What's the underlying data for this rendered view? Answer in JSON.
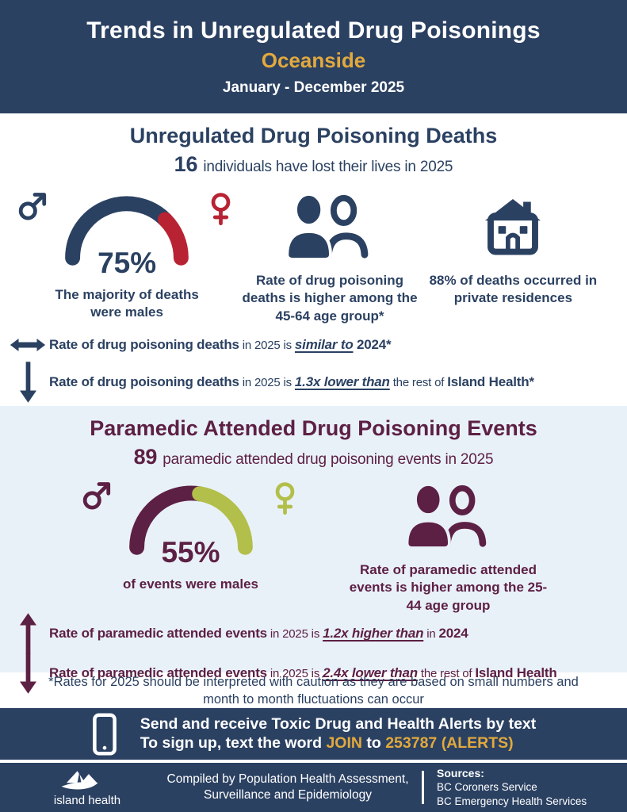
{
  "colors": {
    "navy": "#2b4162",
    "gold": "#e2a93d",
    "red": "#b82333",
    "maroon": "#5d2045",
    "olive": "#b2bf4a",
    "light_blue": "#e9f1f8"
  },
  "icons": {
    "male": "male-symbol",
    "female": "female-symbol",
    "people": "two-people",
    "house": "house",
    "left_right": "left-right-arrow",
    "down": "down-arrow",
    "up": "up-arrow",
    "phone": "mobile-phone",
    "logo": "island-health-mountain-logo"
  },
  "header": {
    "title": "Trends in Unregulated Drug Poisonings",
    "region": "Oceanside",
    "period": "January - December 2025"
  },
  "deaths": {
    "title": "Unregulated Drug Poisoning Deaths",
    "count": "16",
    "count_text": "individuals have lost their lives in 2025",
    "gauge": {
      "type": "gauge",
      "pct": 75,
      "value_label": "75%",
      "caption": "The majority of deaths were males",
      "main_color": "#2b4162",
      "rest_color": "#b82333"
    },
    "age_stat": "Rate of drug poisoning deaths is higher among the 45-64 age group*",
    "residence_stat": "88% of deaths occurred in private residences",
    "comparisons": [
      {
        "icon": "left-right-arrow",
        "segments": [
          {
            "t": "Rate of drug poisoning deaths",
            "c": "b"
          },
          {
            "t": " in 2025 is ",
            "c": "n"
          },
          {
            "t": "similar to",
            "c": "u"
          },
          {
            "t": " 2024*",
            "c": "b"
          }
        ]
      },
      {
        "icon": "down-arrow",
        "segments": [
          {
            "t": "Rate of drug poisoning deaths",
            "c": "b"
          },
          {
            "t": " in 2025 is ",
            "c": "n"
          },
          {
            "t": "1.3x lower than",
            "c": "u"
          },
          {
            "t": " the rest of ",
            "c": "n"
          },
          {
            "t": "Island Health*",
            "c": "b"
          }
        ]
      }
    ]
  },
  "events": {
    "title": "Paramedic Attended Drug Poisoning Events",
    "count": "89",
    "count_text": "paramedic attended drug poisoning events in 2025",
    "gauge": {
      "type": "gauge",
      "pct": 55,
      "value_label": "55%",
      "caption": "of events were males",
      "main_color": "#5d2045",
      "rest_color": "#b2bf4a"
    },
    "age_stat": "Rate of paramedic attended events is higher among the 25-44 age group",
    "comparisons": [
      {
        "icon": "up-arrow",
        "segments": [
          {
            "t": "Rate of paramedic attended events",
            "c": "b"
          },
          {
            "t": " in 2025 is ",
            "c": "n"
          },
          {
            "t": "1.2x higher than",
            "c": "u"
          },
          {
            "t": " in ",
            "c": "n"
          },
          {
            "t": "2024",
            "c": "b"
          }
        ]
      },
      {
        "icon": "down-arrow",
        "segments": [
          {
            "t": "Rate of paramedic attended events",
            "c": "b"
          },
          {
            "t": " in 2025 is ",
            "c": "n"
          },
          {
            "t": "2.4x lower than",
            "c": "u"
          },
          {
            "t": " the rest of ",
            "c": "n"
          },
          {
            "t": "Island Health",
            "c": "b"
          }
        ]
      }
    ]
  },
  "footnote": "*Rates for 2025 should be interpreted with caution as they are based on small numbers and month to month fluctuations can occur",
  "alert_banner": {
    "line1": "Send and receive Toxic Drug and Health Alerts by text",
    "line2_segments": [
      {
        "t": "To sign up, text the word ",
        "c": "w"
      },
      {
        "t": "JOIN",
        "c": "g"
      },
      {
        "t": " to ",
        "c": "w"
      },
      {
        "t": "253787 (ALERTS)",
        "c": "g"
      }
    ]
  },
  "footer": {
    "logo_text": "island health",
    "compiled_lines": [
      "Compiled by Population Health Assessment,",
      "Surveillance and Epidemiology"
    ],
    "sources_label": "Sources:",
    "sources": [
      "BC Coroners Service",
      "BC Emergency Health Services"
    ]
  }
}
